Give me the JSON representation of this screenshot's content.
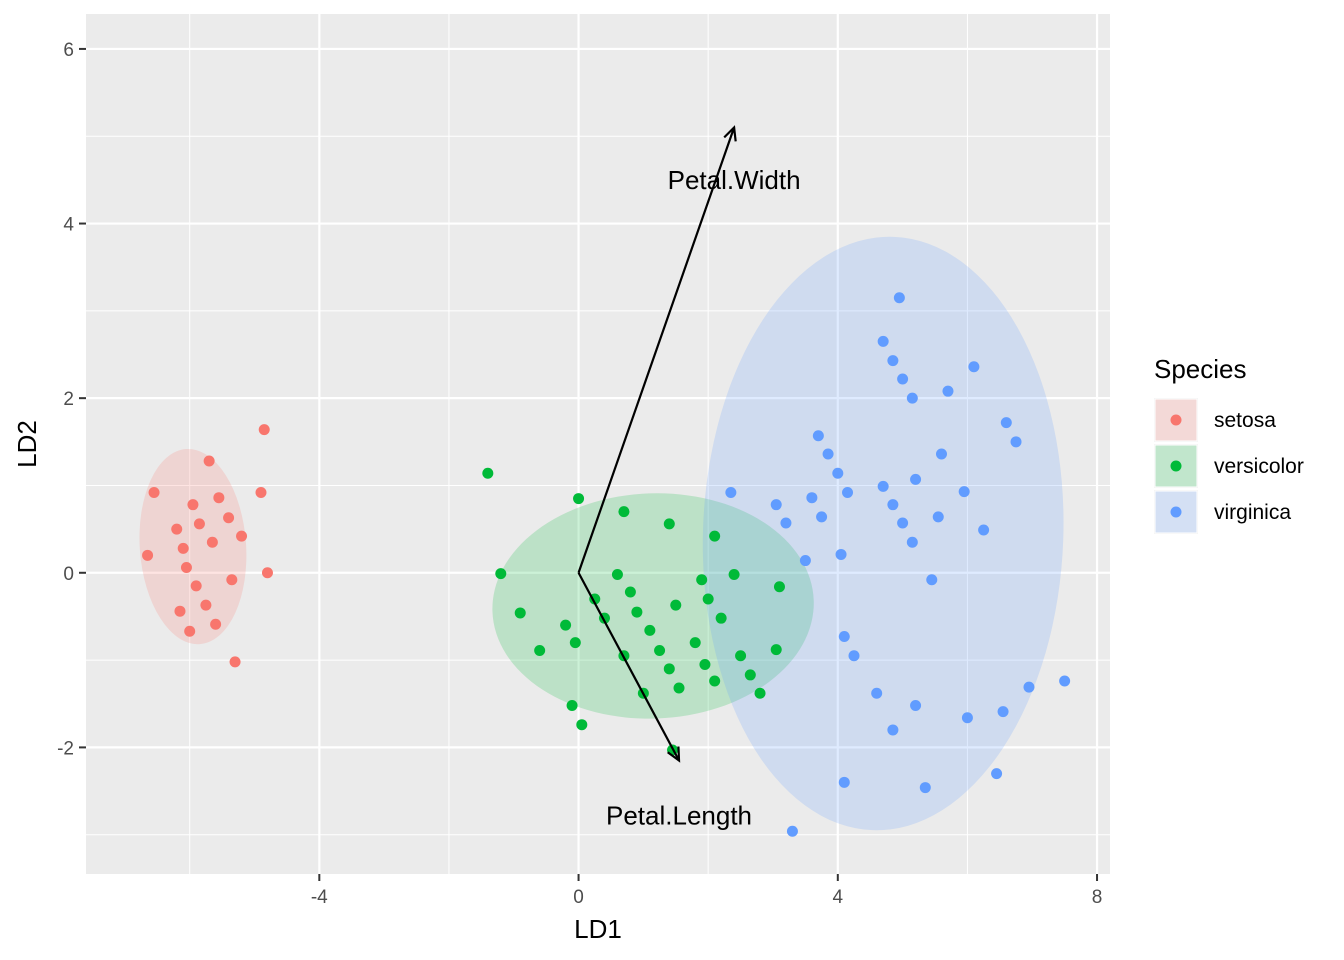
{
  "chart_data": {
    "type": "scatter",
    "xlabel": "LD1",
    "ylabel": "LD2",
    "xlim": [
      -7.6,
      8.2
    ],
    "ylim": [
      -3.45,
      6.4
    ],
    "x_ticks": [
      -4,
      0,
      4,
      8
    ],
    "y_ticks": [
      -2,
      0,
      2,
      4,
      6
    ],
    "x_tick_labels": [
      "-4",
      "0",
      "4",
      "8"
    ],
    "y_tick_labels": [
      "-2",
      "0",
      "2",
      "4",
      "6"
    ],
    "grid": true,
    "legend": {
      "title": "Species",
      "placement": "right",
      "entries": [
        "setosa",
        "versicolor",
        "virginica"
      ]
    },
    "series": [
      {
        "name": "setosa",
        "color": "#F8766D",
        "ellipse": {
          "cx": -5.95,
          "cy": 0.3,
          "rx": 0.82,
          "ry": 1.12,
          "angle": 4
        },
        "points": [
          [
            -4.85,
            1.64
          ],
          [
            -6.55,
            0.92
          ],
          [
            -4.9,
            0.92
          ],
          [
            -5.7,
            1.28
          ],
          [
            -6.2,
            0.5
          ],
          [
            -5.95,
            0.78
          ],
          [
            -5.55,
            0.86
          ],
          [
            -5.85,
            0.56
          ],
          [
            -5.4,
            0.63
          ],
          [
            -5.2,
            0.42
          ],
          [
            -6.1,
            0.28
          ],
          [
            -5.65,
            0.35
          ],
          [
            -6.65,
            0.2
          ],
          [
            -6.05,
            0.06
          ],
          [
            -4.8,
            0.0
          ],
          [
            -5.35,
            -0.08
          ],
          [
            -5.9,
            -0.15
          ],
          [
            -6.15,
            -0.44
          ],
          [
            -5.75,
            -0.37
          ],
          [
            -5.6,
            -0.59
          ],
          [
            -6.0,
            -0.67
          ],
          [
            -5.3,
            -1.02
          ]
        ]
      },
      {
        "name": "versicolor",
        "color": "#00BA38",
        "ellipse": {
          "cx": 1.15,
          "cy": -0.38,
          "rx": 2.48,
          "ry": 1.29,
          "angle": 2
        },
        "points": [
          [
            -1.4,
            1.14
          ],
          [
            0.0,
            0.85
          ],
          [
            0.7,
            0.7
          ],
          [
            1.4,
            0.56
          ],
          [
            2.1,
            0.42
          ],
          [
            -1.2,
            -0.01
          ],
          [
            0.6,
            -0.02
          ],
          [
            1.9,
            -0.08
          ],
          [
            2.4,
            -0.02
          ],
          [
            3.1,
            -0.16
          ],
          [
            0.8,
            -0.22
          ],
          [
            0.25,
            -0.3
          ],
          [
            2.0,
            -0.3
          ],
          [
            -0.9,
            -0.46
          ],
          [
            0.9,
            -0.45
          ],
          [
            1.5,
            -0.37
          ],
          [
            0.4,
            -0.52
          ],
          [
            2.2,
            -0.52
          ],
          [
            -0.2,
            -0.6
          ],
          [
            1.1,
            -0.66
          ],
          [
            -0.05,
            -0.8
          ],
          [
            1.8,
            -0.8
          ],
          [
            -0.6,
            -0.89
          ],
          [
            1.25,
            -0.89
          ],
          [
            3.05,
            -0.88
          ],
          [
            0.7,
            -0.95
          ],
          [
            2.5,
            -0.95
          ],
          [
            1.4,
            -1.1
          ],
          [
            1.95,
            -1.05
          ],
          [
            2.65,
            -1.17
          ],
          [
            2.1,
            -1.24
          ],
          [
            1.55,
            -1.32
          ],
          [
            1.0,
            -1.38
          ],
          [
            2.8,
            -1.38
          ],
          [
            -0.1,
            -1.52
          ],
          [
            0.05,
            -1.74
          ],
          [
            1.45,
            -2.03
          ]
        ]
      },
      {
        "name": "virginica",
        "color": "#619CFF",
        "ellipse": {
          "cx": 4.7,
          "cy": 0.45,
          "rx": 2.78,
          "ry": 3.4,
          "angle": -2
        },
        "points": [
          [
            4.95,
            3.15
          ],
          [
            4.7,
            2.65
          ],
          [
            4.85,
            2.43
          ],
          [
            5.0,
            2.22
          ],
          [
            6.1,
            2.36
          ],
          [
            5.15,
            2.0
          ],
          [
            5.7,
            2.08
          ],
          [
            6.6,
            1.72
          ],
          [
            3.7,
            1.57
          ],
          [
            6.75,
            1.5
          ],
          [
            3.85,
            1.36
          ],
          [
            5.6,
            1.36
          ],
          [
            4.0,
            1.14
          ],
          [
            5.2,
            1.07
          ],
          [
            4.7,
            0.99
          ],
          [
            2.35,
            0.92
          ],
          [
            4.15,
            0.92
          ],
          [
            5.95,
            0.93
          ],
          [
            3.6,
            0.86
          ],
          [
            3.05,
            0.78
          ],
          [
            4.85,
            0.78
          ],
          [
            3.75,
            0.64
          ],
          [
            5.55,
            0.64
          ],
          [
            3.2,
            0.57
          ],
          [
            5.0,
            0.57
          ],
          [
            6.25,
            0.49
          ],
          [
            5.15,
            0.35
          ],
          [
            4.05,
            0.21
          ],
          [
            3.5,
            0.14
          ],
          [
            5.45,
            -0.08
          ],
          [
            4.1,
            -0.73
          ],
          [
            4.25,
            -0.95
          ],
          [
            4.6,
            -1.38
          ],
          [
            5.2,
            -1.52
          ],
          [
            6.0,
            -1.66
          ],
          [
            6.55,
            -1.59
          ],
          [
            6.95,
            -1.31
          ],
          [
            7.5,
            -1.24
          ],
          [
            4.85,
            -1.8
          ],
          [
            6.45,
            -2.3
          ],
          [
            4.1,
            -2.4
          ],
          [
            5.35,
            -2.46
          ],
          [
            3.3,
            -2.96
          ]
        ]
      }
    ],
    "arrows": [
      {
        "label": "Petal.Width",
        "from": [
          0,
          0
        ],
        "to": [
          2.4,
          5.1
        ],
        "label_at": [
          2.4,
          4.5
        ]
      },
      {
        "label": "Petal.Length",
        "from": [
          0,
          0
        ],
        "to": [
          1.55,
          -2.15
        ],
        "label_at": [
          1.55,
          -2.78
        ]
      }
    ]
  }
}
